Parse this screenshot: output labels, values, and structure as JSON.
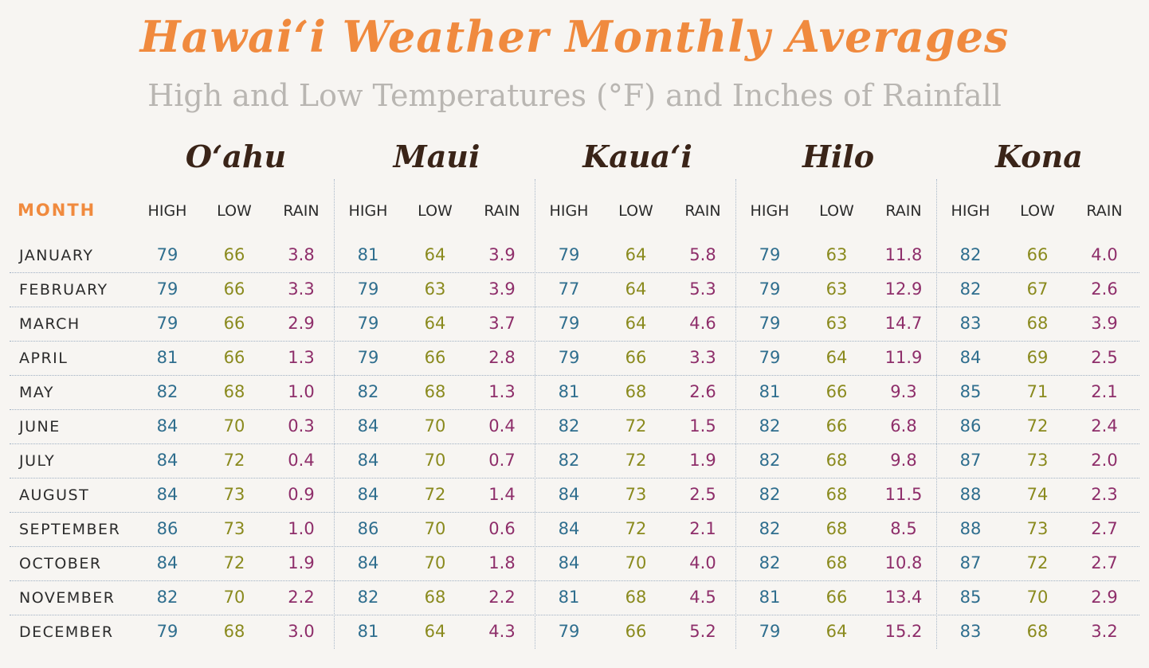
{
  "title": "Hawai‘i Weather Monthly Averages",
  "subtitle": "High and Low Temperatures (°F) and Inches of Rainfall",
  "month_header": "MONTH",
  "col_labels": {
    "high": "HIGH",
    "low": "LOW",
    "rain": "RAIN"
  },
  "colors": {
    "title": "#f08a3e",
    "high": "#2f6e8e",
    "low": "#8a8a1e",
    "rain": "#8e2e6a"
  },
  "islands": [
    "O‘ahu",
    "Maui",
    "Kaua‘i",
    "Hilo",
    "Kona"
  ],
  "rows": [
    {
      "month": "JANUARY",
      "values": [
        [
          "79",
          "66",
          "3.8"
        ],
        [
          "81",
          "64",
          "3.9"
        ],
        [
          "79",
          "64",
          "5.8"
        ],
        [
          "79",
          "63",
          "11.8"
        ],
        [
          "82",
          "66",
          "4.0"
        ]
      ]
    },
    {
      "month": "FEBRUARY",
      "values": [
        [
          "79",
          "66",
          "3.3"
        ],
        [
          "79",
          "63",
          "3.9"
        ],
        [
          "77",
          "64",
          "5.3"
        ],
        [
          "79",
          "63",
          "12.9"
        ],
        [
          "82",
          "67",
          "2.6"
        ]
      ]
    },
    {
      "month": "MARCH",
      "values": [
        [
          "79",
          "66",
          "2.9"
        ],
        [
          "79",
          "64",
          "3.7"
        ],
        [
          "79",
          "64",
          "4.6"
        ],
        [
          "79",
          "63",
          "14.7"
        ],
        [
          "83",
          "68",
          "3.9"
        ]
      ]
    },
    {
      "month": "APRIL",
      "values": [
        [
          "81",
          "66",
          "1.3"
        ],
        [
          "79",
          "66",
          "2.8"
        ],
        [
          "79",
          "66",
          "3.3"
        ],
        [
          "79",
          "64",
          "11.9"
        ],
        [
          "84",
          "69",
          "2.5"
        ]
      ]
    },
    {
      "month": "MAY",
      "values": [
        [
          "82",
          "68",
          "1.0"
        ],
        [
          "82",
          "68",
          "1.3"
        ],
        [
          "81",
          "68",
          "2.6"
        ],
        [
          "81",
          "66",
          "9.3"
        ],
        [
          "85",
          "71",
          "2.1"
        ]
      ]
    },
    {
      "month": "JUNE",
      "values": [
        [
          "84",
          "70",
          "0.3"
        ],
        [
          "84",
          "70",
          "0.4"
        ],
        [
          "82",
          "72",
          "1.5"
        ],
        [
          "82",
          "66",
          "6.8"
        ],
        [
          "86",
          "72",
          "2.4"
        ]
      ]
    },
    {
      "month": "JULY",
      "values": [
        [
          "84",
          "72",
          "0.4"
        ],
        [
          "84",
          "70",
          "0.7"
        ],
        [
          "82",
          "72",
          "1.9"
        ],
        [
          "82",
          "68",
          "9.8"
        ],
        [
          "87",
          "73",
          "2.0"
        ]
      ]
    },
    {
      "month": "AUGUST",
      "values": [
        [
          "84",
          "73",
          "0.9"
        ],
        [
          "84",
          "72",
          "1.4"
        ],
        [
          "84",
          "73",
          "2.5"
        ],
        [
          "82",
          "68",
          "11.5"
        ],
        [
          "88",
          "74",
          "2.3"
        ]
      ]
    },
    {
      "month": "SEPTEMBER",
      "values": [
        [
          "86",
          "73",
          "1.0"
        ],
        [
          "86",
          "70",
          "0.6"
        ],
        [
          "84",
          "72",
          "2.1"
        ],
        [
          "82",
          "68",
          "8.5"
        ],
        [
          "88",
          "73",
          "2.7"
        ]
      ]
    },
    {
      "month": "OCTOBER",
      "values": [
        [
          "84",
          "72",
          "1.9"
        ],
        [
          "84",
          "70",
          "1.8"
        ],
        [
          "84",
          "70",
          "4.0"
        ],
        [
          "82",
          "68",
          "10.8"
        ],
        [
          "87",
          "72",
          "2.7"
        ]
      ]
    },
    {
      "month": "NOVEMBER",
      "values": [
        [
          "82",
          "70",
          "2.2"
        ],
        [
          "82",
          "68",
          "2.2"
        ],
        [
          "81",
          "68",
          "4.5"
        ],
        [
          "81",
          "66",
          "13.4"
        ],
        [
          "85",
          "70",
          "2.9"
        ]
      ]
    },
    {
      "month": "DECEMBER",
      "values": [
        [
          "79",
          "68",
          "3.0"
        ],
        [
          "81",
          "64",
          "4.3"
        ],
        [
          "79",
          "66",
          "5.2"
        ],
        [
          "79",
          "64",
          "15.2"
        ],
        [
          "83",
          "68",
          "3.2"
        ]
      ]
    }
  ]
}
